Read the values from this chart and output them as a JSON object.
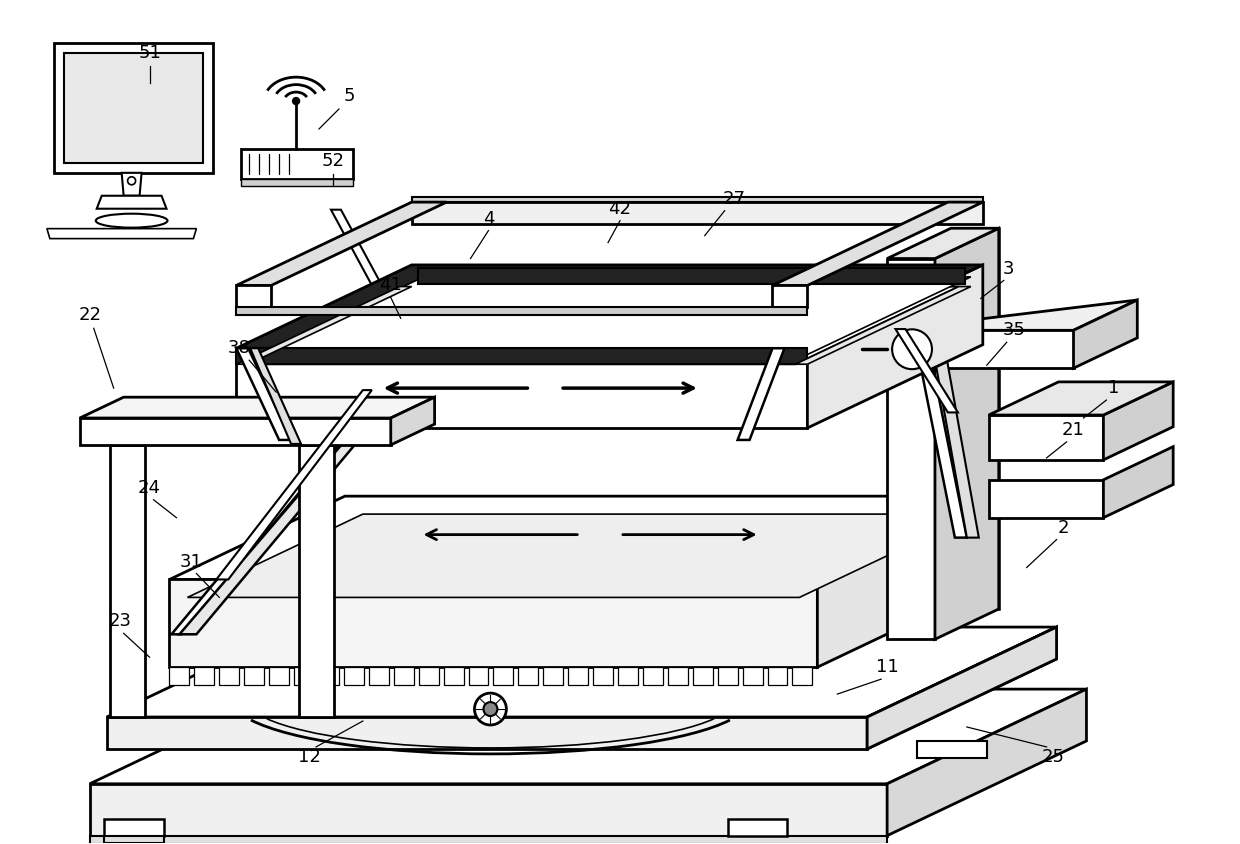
{
  "bg_color": "#ffffff",
  "lc": "#000000",
  "figsize": [
    12.4,
    8.44
  ],
  "dpi": 100,
  "labels": [
    [
      "51",
      148,
      52
    ],
    [
      "5",
      348,
      95
    ],
    [
      "52",
      332,
      160
    ],
    [
      "4",
      488,
      218
    ],
    [
      "42",
      620,
      208
    ],
    [
      "27",
      735,
      198
    ],
    [
      "3",
      1010,
      268
    ],
    [
      "35",
      1015,
      330
    ],
    [
      "1",
      1115,
      388
    ],
    [
      "21",
      1075,
      430
    ],
    [
      "2",
      1065,
      528
    ],
    [
      "38",
      238,
      348
    ],
    [
      "41",
      390,
      285
    ],
    [
      "22",
      88,
      315
    ],
    [
      "24",
      148,
      488
    ],
    [
      "31",
      190,
      562
    ],
    [
      "23",
      118,
      622
    ],
    [
      "11",
      888,
      668
    ],
    [
      "12",
      308,
      758
    ],
    [
      "25",
      1055,
      758
    ]
  ],
  "leader_lines": [
    [
      "51",
      148,
      65,
      148,
      82
    ],
    [
      "5",
      338,
      108,
      318,
      128
    ],
    [
      "52",
      332,
      173,
      332,
      185
    ],
    [
      "4",
      488,
      230,
      470,
      258
    ],
    [
      "42",
      620,
      220,
      608,
      242
    ],
    [
      "27",
      725,
      210,
      705,
      235
    ],
    [
      "3",
      1005,
      280,
      982,
      298
    ],
    [
      "35",
      1008,
      342,
      988,
      365
    ],
    [
      "1",
      1108,
      400,
      1085,
      418
    ],
    [
      "21",
      1068,
      442,
      1048,
      458
    ],
    [
      "2",
      1058,
      540,
      1028,
      568
    ],
    [
      "38",
      248,
      360,
      275,
      392
    ],
    [
      "41",
      390,
      297,
      400,
      318
    ],
    [
      "22",
      92,
      328,
      112,
      388
    ],
    [
      "24",
      152,
      500,
      175,
      518
    ],
    [
      "31",
      195,
      574,
      218,
      598
    ],
    [
      "23",
      122,
      634,
      148,
      658
    ],
    [
      "11",
      882,
      680,
      838,
      695
    ],
    [
      "12",
      315,
      748,
      362,
      722
    ],
    [
      "25",
      1048,
      748,
      968,
      728
    ]
  ]
}
